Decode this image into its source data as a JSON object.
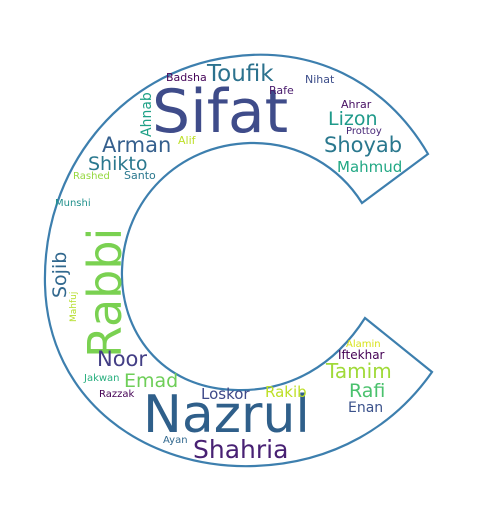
{
  "outline_color": "#3d7fae",
  "words": [
    {
      "text": "Sifat",
      "color": "#3f4c8a"
    },
    {
      "text": "Nazrul",
      "color": "#2f5f8a"
    },
    {
      "text": "Rabbi",
      "color": "#7ad151"
    },
    {
      "text": "Shahria",
      "color": "#482173"
    },
    {
      "text": "Toufik",
      "color": "#2c728e"
    },
    {
      "text": "Arman",
      "color": "#355f8d"
    },
    {
      "text": "Shoyab",
      "color": "#2a788e"
    },
    {
      "text": "Shikto",
      "color": "#2a788e"
    },
    {
      "text": "Noor",
      "color": "#433e85"
    },
    {
      "text": "Lizon",
      "color": "#1f9a8a"
    },
    {
      "text": "Tamim",
      "color": "#a0da39"
    },
    {
      "text": "Emad",
      "color": "#6ece58"
    },
    {
      "text": "Rafi",
      "color": "#4ac16d"
    },
    {
      "text": "Sojib",
      "color": "#31688e"
    },
    {
      "text": "Mahmud",
      "color": "#22a884"
    },
    {
      "text": "Ahnab",
      "color": "#1fa187"
    },
    {
      "text": "Loskor",
      "color": "#3e4989"
    },
    {
      "text": "Rakib",
      "color": "#bddf26"
    },
    {
      "text": "Enan",
      "color": "#3b528b"
    },
    {
      "text": "Iftekhar",
      "color": "#440154"
    },
    {
      "text": "Badsha",
      "color": "#450559"
    },
    {
      "text": "Nihat",
      "color": "#3d4e8a"
    },
    {
      "text": "Rafe",
      "color": "#481a6c"
    },
    {
      "text": "Ahrar",
      "color": "#471063"
    },
    {
      "text": "Prottoy",
      "color": "#482878"
    },
    {
      "text": "Alif",
      "color": "#bddf26"
    },
    {
      "text": "Rashed",
      "color": "#95d840"
    },
    {
      "text": "Santo",
      "color": "#2a788e"
    },
    {
      "text": "Munshi",
      "color": "#21918c"
    },
    {
      "text": "Mahfuj",
      "color": "#b5de2b"
    },
    {
      "text": "Jakwan",
      "color": "#29af7f"
    },
    {
      "text": "Razzak",
      "color": "#440154"
    },
    {
      "text": "Alamin",
      "color": "#d8e219"
    },
    {
      "text": "Ayan",
      "color": "#31688e"
    }
  ]
}
